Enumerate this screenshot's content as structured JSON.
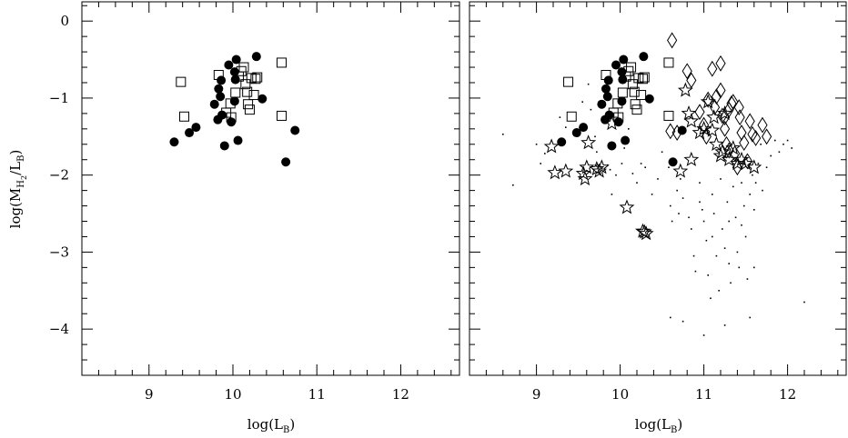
{
  "chart_data": [
    {
      "type": "scatter",
      "panel": "left",
      "xlabel": "log(L_B)",
      "ylabel": "log(M_H2/L_B)",
      "xlim": [
        8.2,
        12.7
      ],
      "ylim": [
        -4.6,
        0.25
      ],
      "xticks": [
        "9",
        "10",
        "11",
        "12"
      ],
      "yticks": [
        "0",
        "−1",
        "−2",
        "−3",
        "−4"
      ],
      "series": [
        {
          "marker": "filled-circle",
          "points": [
            [
              9.3,
              -1.57
            ],
            [
              9.48,
              -1.45
            ],
            [
              9.56,
              -1.38
            ],
            [
              9.78,
              -1.08
            ],
            [
              9.83,
              -0.88
            ],
            [
              9.85,
              -0.98
            ],
            [
              9.86,
              -0.77
            ],
            [
              9.82,
              -1.28
            ],
            [
              9.87,
              -1.22
            ],
            [
              9.9,
              -1.62
            ],
            [
              9.95,
              -0.57
            ],
            [
              9.98,
              -1.31
            ],
            [
              10.02,
              -0.66
            ],
            [
              10.03,
              -0.76
            ],
            [
              10.04,
              -0.5
            ],
            [
              10.02,
              -1.04
            ],
            [
              10.06,
              -1.55
            ],
            [
              10.28,
              -0.46
            ],
            [
              10.35,
              -1.01
            ],
            [
              10.63,
              -1.83
            ],
            [
              10.74,
              -1.42
            ]
          ]
        },
        {
          "marker": "open-square",
          "points": [
            [
              9.38,
              -0.79
            ],
            [
              9.42,
              -1.24
            ],
            [
              9.83,
              -0.7
            ],
            [
              9.92,
              -1.19
            ],
            [
              9.97,
              -1.07
            ],
            [
              9.98,
              -1.25
            ],
            [
              10.03,
              -0.93
            ],
            [
              10.07,
              -0.72
            ],
            [
              10.1,
              -0.65
            ],
            [
              10.13,
              -0.6
            ],
            [
              10.15,
              -0.82
            ],
            [
              10.17,
              -0.92
            ],
            [
              10.18,
              -1.08
            ],
            [
              10.2,
              -1.15
            ],
            [
              10.22,
              -0.74
            ],
            [
              10.25,
              -0.96
            ],
            [
              10.27,
              -0.75
            ],
            [
              10.29,
              -0.73
            ],
            [
              10.58,
              -0.54
            ],
            [
              10.58,
              -1.23
            ]
          ]
        }
      ]
    },
    {
      "type": "scatter",
      "panel": "right",
      "xlabel": "log(L_B)",
      "ylabel": "",
      "xlim": [
        8.2,
        12.7
      ],
      "ylim": [
        -4.6,
        0.25
      ],
      "xticks": [
        "9",
        "10",
        "11",
        "12"
      ],
      "yticks": [],
      "series": [
        {
          "marker": "filled-circle",
          "points": [
            [
              9.3,
              -1.57
            ],
            [
              9.48,
              -1.45
            ],
            [
              9.56,
              -1.38
            ],
            [
              9.78,
              -1.08
            ],
            [
              9.83,
              -0.88
            ],
            [
              9.85,
              -0.98
            ],
            [
              9.86,
              -0.77
            ],
            [
              9.82,
              -1.28
            ],
            [
              9.87,
              -1.22
            ],
            [
              9.9,
              -1.62
            ],
            [
              9.95,
              -0.57
            ],
            [
              9.98,
              -1.31
            ],
            [
              10.02,
              -0.66
            ],
            [
              10.03,
              -0.76
            ],
            [
              10.04,
              -0.5
            ],
            [
              10.02,
              -1.04
            ],
            [
              10.06,
              -1.55
            ],
            [
              10.28,
              -0.46
            ],
            [
              10.35,
              -1.01
            ],
            [
              10.63,
              -1.83
            ],
            [
              10.74,
              -1.42
            ]
          ]
        },
        {
          "marker": "open-square",
          "points": [
            [
              9.38,
              -0.79
            ],
            [
              9.42,
              -1.24
            ],
            [
              9.83,
              -0.7
            ],
            [
              9.92,
              -1.19
            ],
            [
              9.97,
              -1.07
            ],
            [
              9.98,
              -1.25
            ],
            [
              10.03,
              -0.93
            ],
            [
              10.07,
              -0.72
            ],
            [
              10.1,
              -0.65
            ],
            [
              10.13,
              -0.6
            ],
            [
              10.15,
              -0.82
            ],
            [
              10.17,
              -0.92
            ],
            [
              10.18,
              -1.08
            ],
            [
              10.2,
              -1.15
            ],
            [
              10.22,
              -0.74
            ],
            [
              10.25,
              -0.96
            ],
            [
              10.27,
              -0.75
            ],
            [
              10.29,
              -0.73
            ],
            [
              10.58,
              -0.54
            ],
            [
              10.58,
              -1.23
            ]
          ]
        },
        {
          "marker": "open-star",
          "points": [
            [
              9.18,
              -1.63
            ],
            [
              9.22,
              -1.97
            ],
            [
              9.35,
              -1.95
            ],
            [
              9.62,
              -1.58
            ],
            [
              9.56,
              -1.98
            ],
            [
              9.58,
              -2.05
            ],
            [
              9.6,
              -1.9
            ],
            [
              9.72,
              -1.92
            ],
            [
              9.75,
              -1.95
            ],
            [
              9.78,
              -1.9
            ],
            [
              9.9,
              -1.33
            ],
            [
              10.08,
              -2.42
            ],
            [
              10.27,
              -2.73
            ],
            [
              10.29,
              -2.74
            ],
            [
              10.31,
              -2.76
            ],
            [
              10.72,
              -1.95
            ],
            [
              10.78,
              -0.9
            ],
            [
              10.82,
              -1.2
            ],
            [
              10.85,
              -1.3
            ],
            [
              10.85,
              -1.8
            ],
            [
              10.95,
              -1.45
            ],
            [
              11.0,
              -1.4
            ],
            [
              11.05,
              -1.05
            ],
            [
              11.1,
              -1.42
            ],
            [
              11.12,
              -1.25
            ],
            [
              11.15,
              -1.6
            ],
            [
              11.2,
              -1.75
            ],
            [
              11.22,
              -1.7
            ],
            [
              11.25,
              -1.2
            ],
            [
              11.3,
              -1.8
            ],
            [
              11.35,
              -1.65
            ],
            [
              11.4,
              -1.85
            ],
            [
              11.45,
              -1.8
            ],
            [
              11.5,
              -1.85
            ],
            [
              11.6,
              -1.9
            ]
          ]
        },
        {
          "marker": "open-diamond",
          "points": [
            [
              10.6,
              -1.43
            ],
            [
              10.68,
              -1.45
            ],
            [
              10.62,
              -0.25
            ],
            [
              10.8,
              -0.65
            ],
            [
              10.85,
              -0.77
            ],
            [
              10.95,
              -1.18
            ],
            [
              11.0,
              -1.35
            ],
            [
              11.03,
              -1.5
            ],
            [
              11.05,
              -1.02
            ],
            [
              11.1,
              -0.62
            ],
            [
              11.13,
              -1.12
            ],
            [
              11.15,
              -0.98
            ],
            [
              11.2,
              -0.55
            ],
            [
              11.22,
              -1.23
            ],
            [
              11.25,
              -1.4
            ],
            [
              11.27,
              -1.6
            ],
            [
              11.3,
              -1.68
            ],
            [
              11.33,
              -1.07
            ],
            [
              11.35,
              -1.05
            ],
            [
              11.37,
              -1.72
            ],
            [
              11.4,
              -1.9
            ],
            [
              11.43,
              -1.25
            ],
            [
              11.45,
              -1.45
            ],
            [
              11.48,
              -1.58
            ],
            [
              11.52,
              -1.82
            ],
            [
              11.55,
              -1.3
            ],
            [
              11.58,
              -1.47
            ],
            [
              11.62,
              -1.52
            ],
            [
              11.7,
              -1.35
            ],
            [
              11.75,
              -1.5
            ],
            [
              11.3,
              -1.15
            ],
            [
              11.42,
              -1.12
            ],
            [
              11.25,
              -1.25
            ],
            [
              11.2,
              -0.9
            ]
          ]
        },
        {
          "marker": "dot",
          "points": [
            [
              8.6,
              -1.47
            ],
            [
              8.72,
              -2.13
            ],
            [
              9.0,
              -1.6
            ],
            [
              9.05,
              -1.85
            ],
            [
              9.1,
              -1.72
            ],
            [
              9.28,
              -1.25
            ],
            [
              9.35,
              -1.38
            ],
            [
              9.55,
              -1.05
            ],
            [
              9.62,
              -0.82
            ],
            [
              9.65,
              -1.15
            ],
            [
              9.7,
              -1.5
            ],
            [
              9.72,
              -1.7
            ],
            [
              9.85,
              -1.87
            ],
            [
              9.88,
              -1.93
            ],
            [
              9.9,
              -2.25
            ],
            [
              9.95,
              -2.0
            ],
            [
              10.02,
              -1.85
            ],
            [
              10.05,
              -1.65
            ],
            [
              10.1,
              -1.4
            ],
            [
              10.15,
              -1.98
            ],
            [
              10.2,
              -2.1
            ],
            [
              10.25,
              -1.85
            ],
            [
              10.3,
              -1.9
            ],
            [
              10.38,
              -2.25
            ],
            [
              10.45,
              -2.05
            ],
            [
              10.5,
              -1.7
            ],
            [
              10.58,
              -1.9
            ],
            [
              10.6,
              -2.4
            ],
            [
              10.62,
              -2.6
            ],
            [
              10.68,
              -2.2
            ],
            [
              10.72,
              -2.05
            ],
            [
              10.75,
              -2.3
            ],
            [
              10.82,
              -2.55
            ],
            [
              10.85,
              -2.7
            ],
            [
              10.88,
              -3.05
            ],
            [
              10.9,
              -3.25
            ],
            [
              10.95,
              -2.1
            ],
            [
              10.98,
              -2.45
            ],
            [
              11.0,
              -2.6
            ],
            [
              11.03,
              -2.85
            ],
            [
              11.05,
              -3.3
            ],
            [
              11.08,
              -3.6
            ],
            [
              11.1,
              -2.25
            ],
            [
              11.12,
              -2.5
            ],
            [
              11.15,
              -3.05
            ],
            [
              11.18,
              -3.5
            ],
            [
              11.2,
              -2.05
            ],
            [
              11.22,
              -2.7
            ],
            [
              11.25,
              -2.95
            ],
            [
              11.28,
              -2.35
            ],
            [
              11.3,
              -3.15
            ],
            [
              11.32,
              -3.4
            ],
            [
              11.35,
              -2.15
            ],
            [
              11.38,
              -2.55
            ],
            [
              11.4,
              -3.0
            ],
            [
              11.42,
              -3.2
            ],
            [
              11.45,
              -2.1
            ],
            [
              11.48,
              -2.4
            ],
            [
              11.5,
              -2.8
            ],
            [
              11.52,
              -3.35
            ],
            [
              11.55,
              -2.25
            ],
            [
              11.58,
              -2.0
            ],
            [
              11.6,
              -3.2
            ],
            [
              11.62,
              -2.1
            ],
            [
              11.65,
              -1.85
            ],
            [
              11.68,
              -1.6
            ],
            [
              11.7,
              -2.2
            ],
            [
              11.75,
              -1.9
            ],
            [
              11.8,
              -1.75
            ],
            [
              11.85,
              -1.55
            ],
            [
              11.9,
              -1.7
            ],
            [
              11.95,
              -1.6
            ],
            [
              12.0,
              -1.55
            ],
            [
              12.05,
              -1.65
            ],
            [
              12.2,
              -3.65
            ],
            [
              10.6,
              -3.85
            ],
            [
              10.75,
              -3.9
            ],
            [
              11.0,
              -4.08
            ],
            [
              11.25,
              -3.95
            ],
            [
              11.55,
              -3.85
            ],
            [
              11.1,
              -2.8
            ],
            [
              10.95,
              -2.35
            ],
            [
              10.7,
              -2.5
            ],
            [
              11.3,
              -2.6
            ],
            [
              11.45,
              -2.65
            ],
            [
              11.6,
              -2.45
            ]
          ]
        }
      ]
    }
  ]
}
